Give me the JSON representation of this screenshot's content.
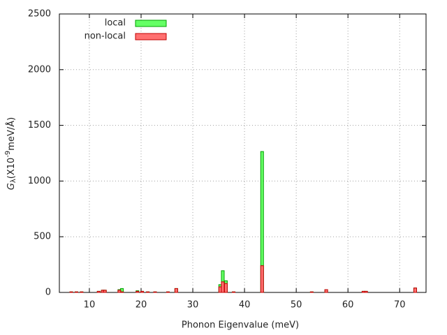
{
  "chart_data": {
    "type": "bar",
    "xlabel": "Phonon Eigenvalue (meV)",
    "ylabel": [
      "G",
      "λ",
      "(X10",
      "-9",
      "meV/Å)"
    ],
    "x": [
      6.5,
      7.5,
      8.5,
      11.8,
      12.6,
      13.0,
      15.8,
      16.3,
      19.3,
      20.2,
      21.3,
      22.7,
      25.2,
      26.8,
      35.3,
      35.8,
      36.4,
      37.9,
      43.4,
      53.0,
      55.8,
      63.0,
      63.5,
      73.0
    ],
    "series": [
      {
        "name": "local",
        "color": "#66ff66",
        "stroke": "#00a000",
        "values": [
          5,
          5,
          5,
          10,
          20,
          20,
          25,
          35,
          15,
          10,
          5,
          5,
          5,
          35,
          70,
          195,
          105,
          5,
          1265,
          5,
          25,
          10,
          10,
          40
        ]
      },
      {
        "name": "non-local",
        "color": "#ff7070",
        "stroke": "#c00000",
        "values": [
          5,
          5,
          5,
          10,
          20,
          20,
          20,
          5,
          10,
          10,
          5,
          5,
          5,
          35,
          50,
          95,
          80,
          5,
          240,
          5,
          25,
          10,
          10,
          40
        ]
      }
    ],
    "xlim": [
      4.2,
      75.1
    ],
    "ylim": [
      0,
      2500
    ],
    "xticks": [
      10,
      20,
      30,
      40,
      50,
      60,
      70
    ],
    "yticks": [
      0,
      500,
      1000,
      1500,
      2000,
      2500
    ],
    "grid": true,
    "legend": "top-left"
  }
}
